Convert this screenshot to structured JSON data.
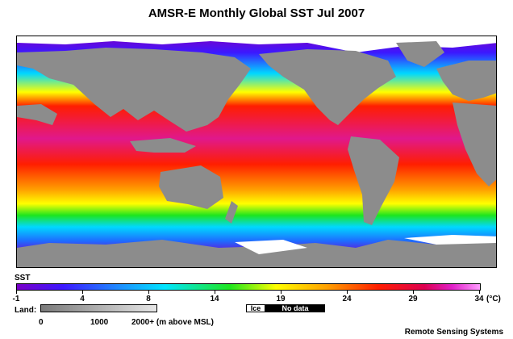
{
  "title": "AMSR-E Monthly Global SST Jul 2007",
  "legend": {
    "label": "SST",
    "ticks": [
      "-1",
      "4",
      "8",
      "14",
      "19",
      "24",
      "29",
      "34"
    ],
    "unit": "(°C)"
  },
  "land_legend": {
    "label": "Land:",
    "ticks": [
      "0",
      "1000",
      "2000+ (m above MSL)"
    ]
  },
  "ice_label": "Ice",
  "nodata_label": "No data",
  "credit": "Remote Sensing Systems",
  "colors": {
    "warm": "#e0188c",
    "hot": "#ff1e00",
    "orange": "#ffa000",
    "yellow": "#ffff00",
    "green": "#1ee61e",
    "cyan": "#00d8ff",
    "blue": "#1e6cff",
    "purple": "#7a00c8",
    "land": "#8c8c8c",
    "ice": "#ffffff"
  }
}
